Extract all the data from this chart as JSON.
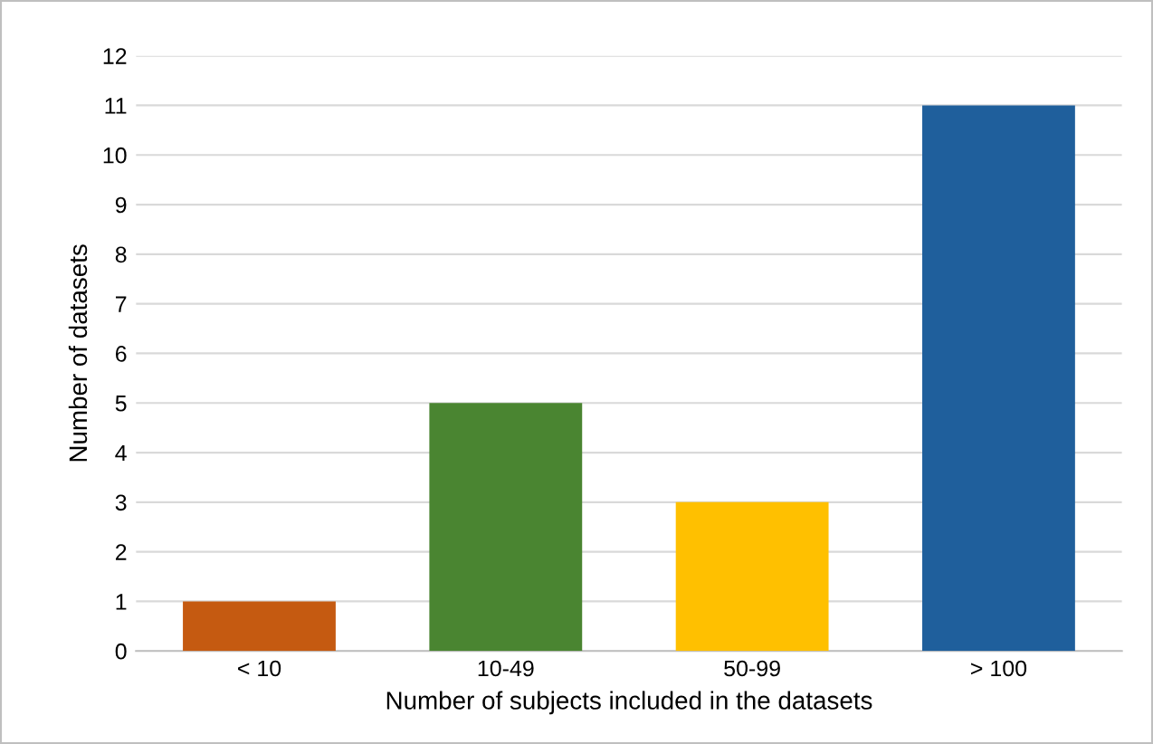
{
  "chart_data": {
    "type": "bar",
    "xlabel": "Number of subjects included in the datasets",
    "ylabel": "Number of datasets",
    "categories": [
      "< 10",
      "10-49",
      "50-99",
      "> 100"
    ],
    "values": [
      1,
      5,
      3,
      11
    ],
    "colors": [
      "#c55a11",
      "#4a8531",
      "#ffc000",
      "#1f5f9c"
    ],
    "ylim": [
      0,
      12
    ],
    "yticks": [
      0,
      1,
      2,
      3,
      4,
      5,
      6,
      7,
      8,
      9,
      10,
      11,
      12
    ],
    "grid": "y"
  }
}
